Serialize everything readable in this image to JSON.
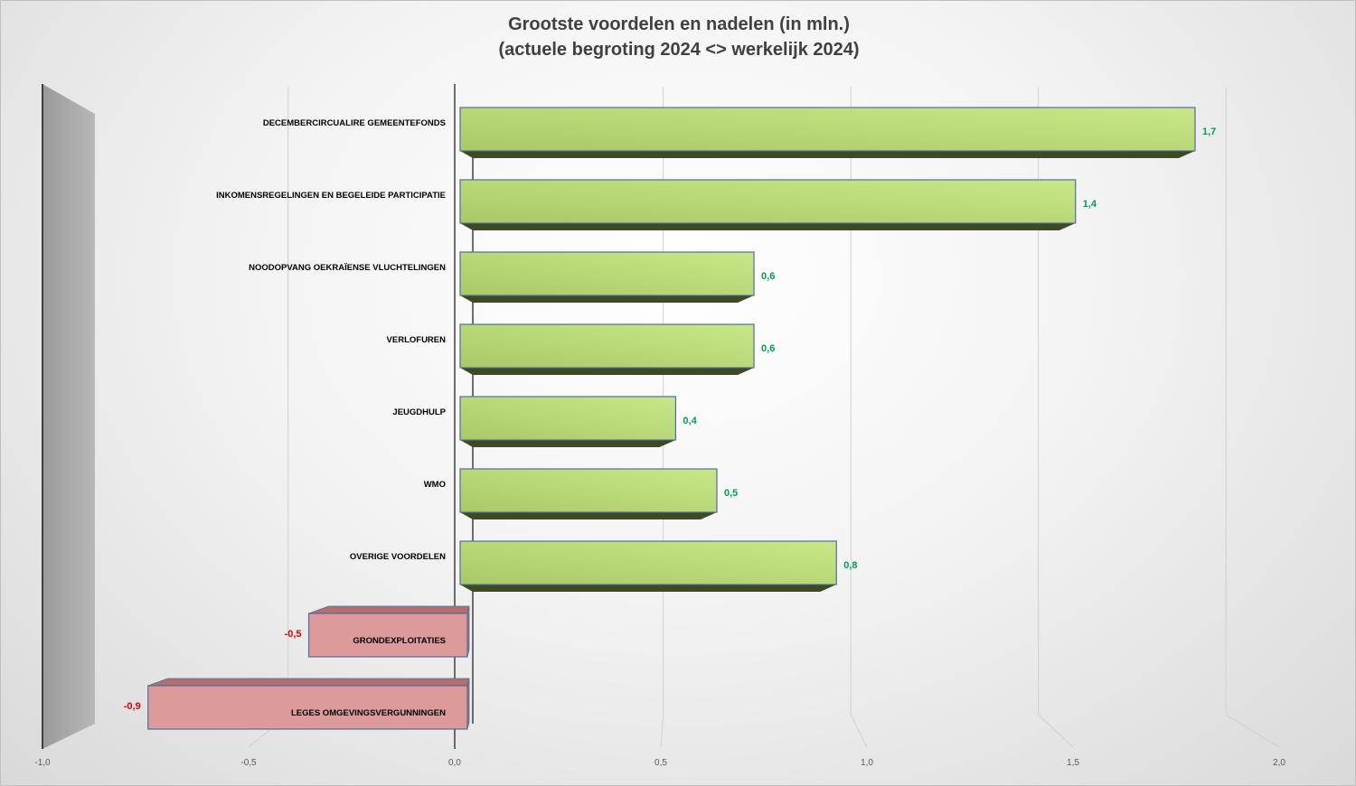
{
  "chart_data": {
    "type": "bar",
    "orientation": "horizontal",
    "title": "Grootste voordelen en nadelen (in mln.)",
    "subtitle": "(actuele begroting 2024 <> werkelijk 2024)",
    "categories": [
      "DECEMBERCIRCUALIRE GEMEENTEFONDS",
      "INKOMENSREGELINGEN EN BEGELEIDE PARTICIPATIE",
      "NOODOPVANG OEKRAÏENSE VLUCHTELINGEN",
      "VERLOFUREN",
      "JEUGDHULP",
      "WMO",
      "OVERIGE VOORDELEN",
      "GRONDEXPLOITATIES",
      "LEGES OMGEVINGSVERGUNNINGEN"
    ],
    "values": [
      1.66,
      1.37,
      0.59,
      0.59,
      0.4,
      0.5,
      0.79,
      -0.49,
      -0.88
    ],
    "value_labels": [
      "1,7",
      "1,4",
      "0,6",
      "0,6",
      "0,4",
      "0,5",
      "0,8",
      "-0,5",
      "-0,9"
    ],
    "xlim": [
      -1.0,
      2.0
    ],
    "x_ticks": [
      "-1,0",
      "-0,5",
      "0,0",
      "0,5",
      "1,0",
      "1,5",
      "2,0"
    ],
    "x_tick_values": [
      -1.0,
      -0.5,
      0.0,
      0.5,
      1.0,
      1.5,
      2.0
    ],
    "xlabel": "",
    "ylabel": "",
    "grid": true,
    "legend": "none",
    "style": "3d",
    "colors": {
      "positive_bar": "#a9c968",
      "positive_bar_light": "#c9e78a",
      "positive_shadow": "#3d4a26",
      "negative_bar": "#dd9a9a",
      "negative_top": "#b36f6f",
      "bar_border": "#4f6f9a",
      "positive_label": "#00a04a",
      "negative_label": "#e00000",
      "axis_line": "#404040",
      "side_wall": "#a6a6a6",
      "gridline": "#d0d0d0"
    }
  }
}
